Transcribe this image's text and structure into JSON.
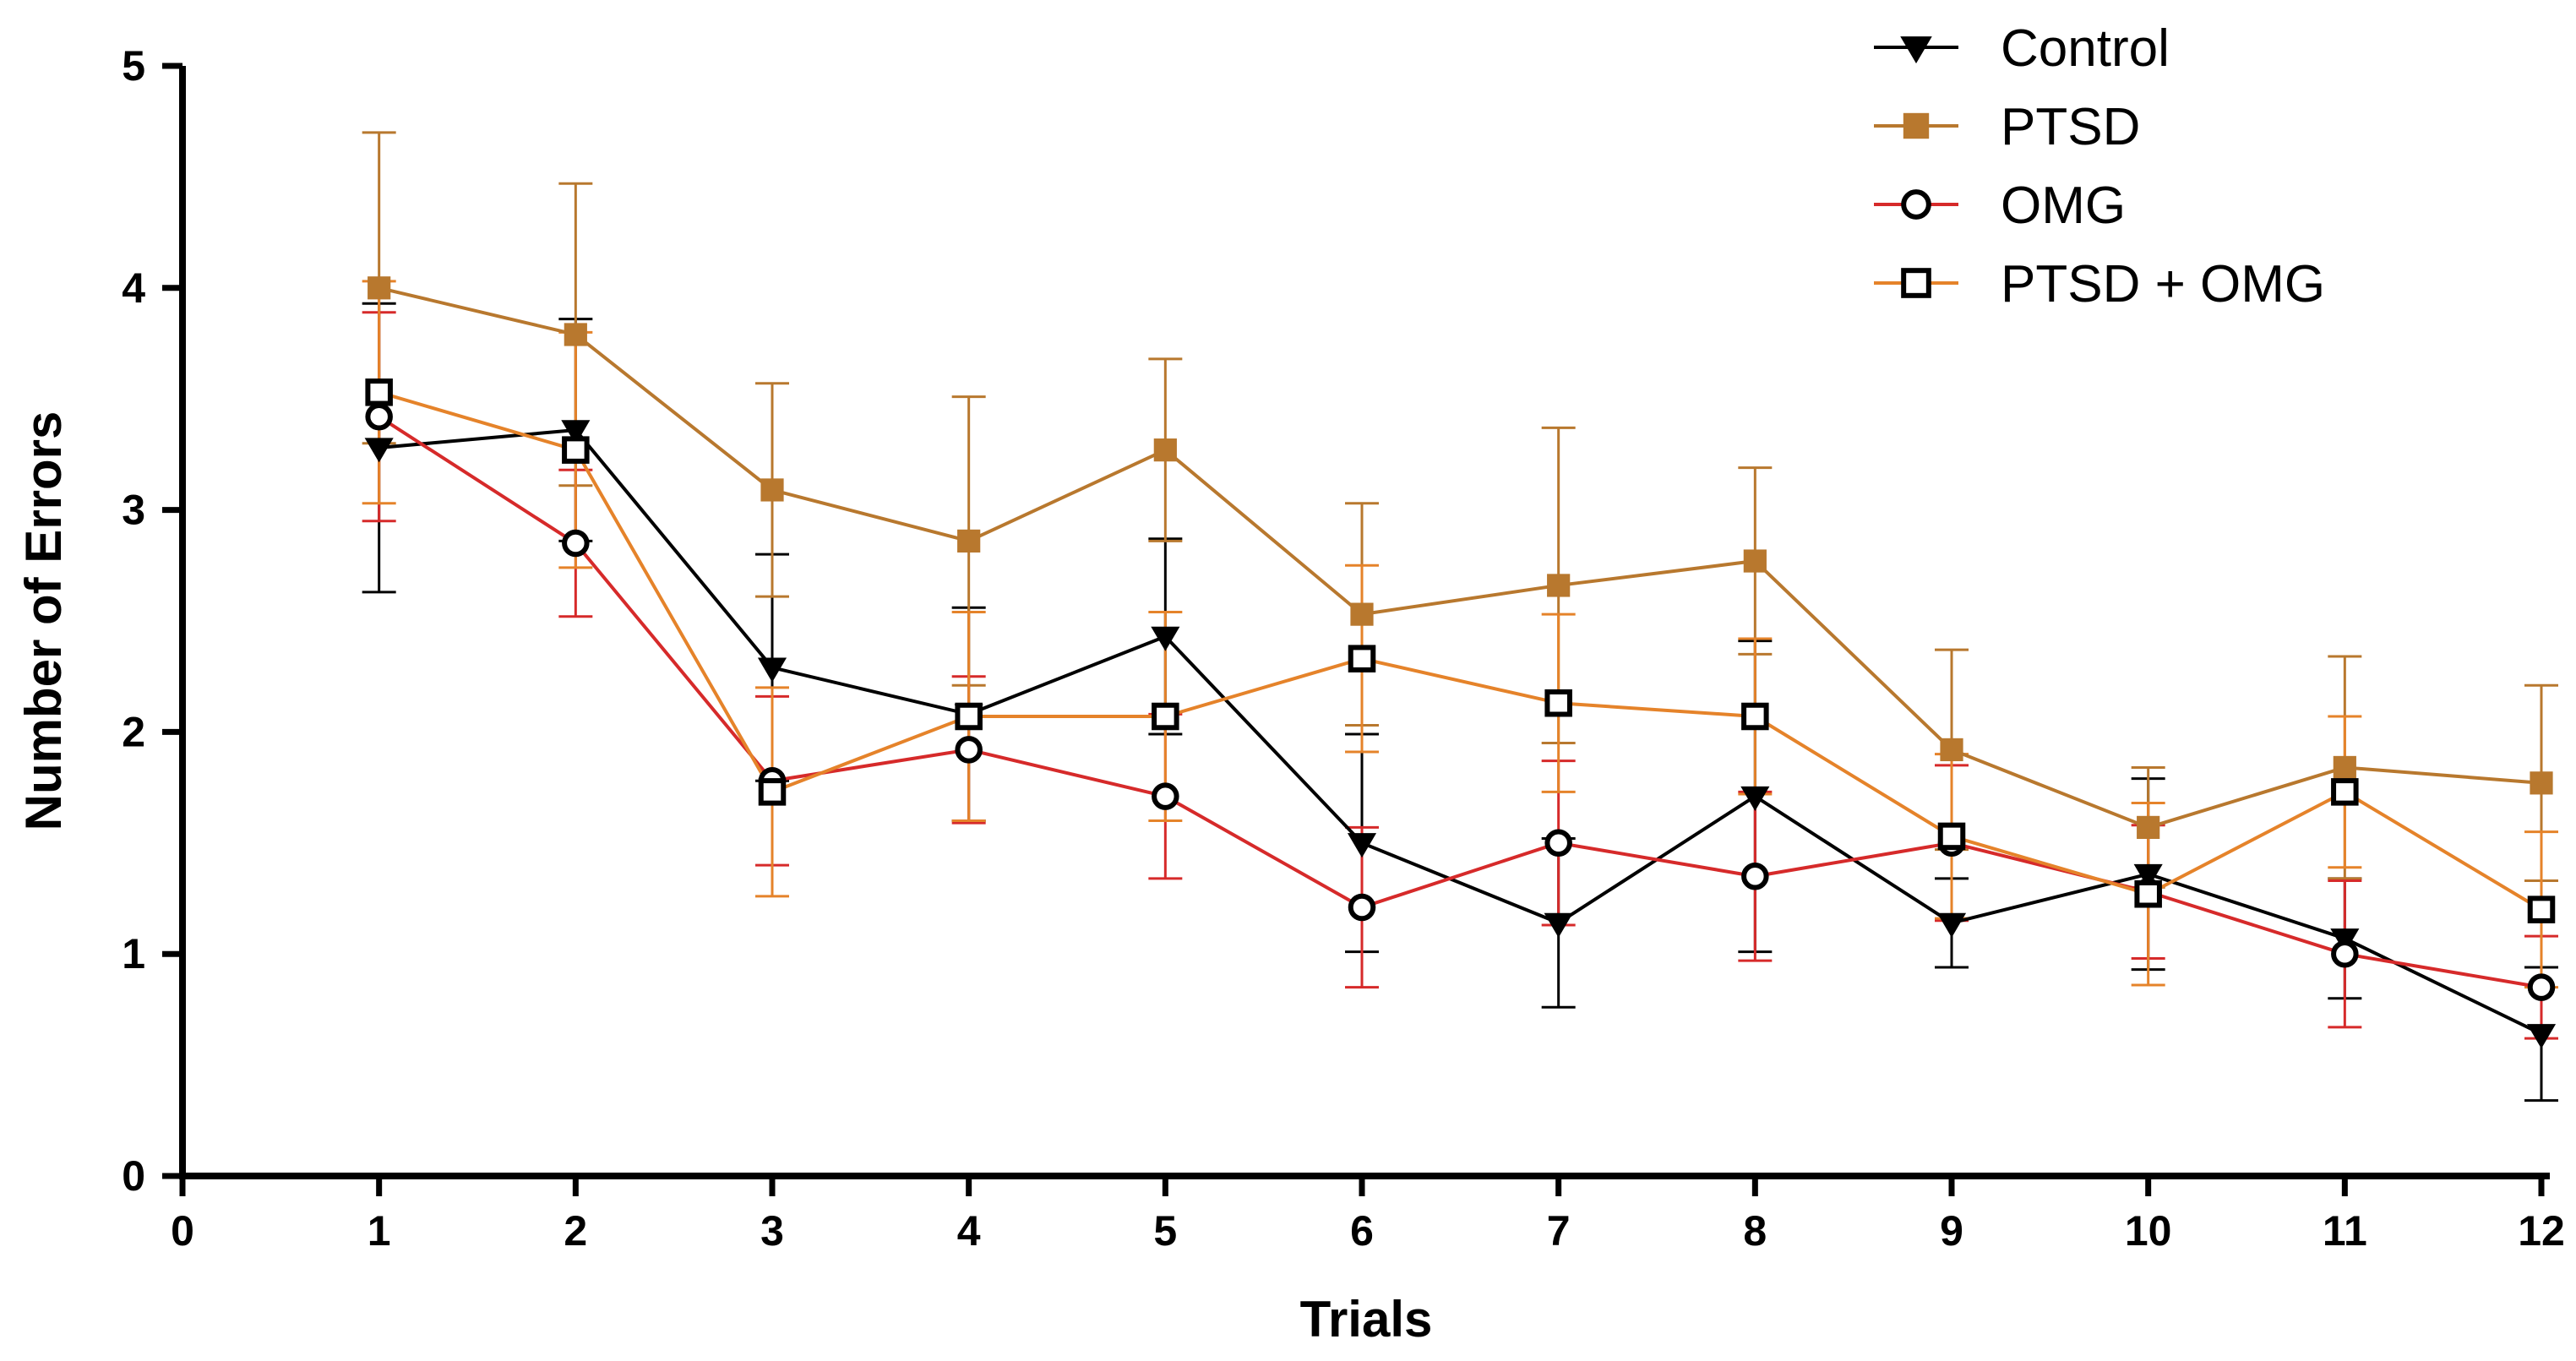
{
  "chart_data": {
    "type": "line",
    "title": "",
    "xlabel": "Trials",
    "ylabel": "Number of Errors",
    "xlim": [
      0,
      12
    ],
    "ylim": [
      0,
      5
    ],
    "x_ticks": [
      "0",
      "1",
      "2",
      "3",
      "4",
      "5",
      "6",
      "7",
      "8",
      "9",
      "10",
      "11",
      "12"
    ],
    "y_ticks": [
      "0",
      "1",
      "2",
      "3",
      "4",
      "5"
    ],
    "x": [
      1,
      2,
      3,
      4,
      5,
      6,
      7,
      8,
      9,
      10,
      11,
      12
    ],
    "grid": false,
    "legend_position": "top-right",
    "series": [
      {
        "name": "Control",
        "color": "#000000",
        "marker": "triangle-down",
        "values": [
          3.28,
          3.36,
          2.29,
          2.08,
          2.43,
          1.5,
          1.14,
          1.71,
          1.14,
          1.36,
          1.07,
          0.64
        ],
        "errors": [
          0.65,
          0.5,
          0.51,
          0.48,
          0.44,
          0.49,
          0.38,
          0.7,
          0.2,
          0.43,
          0.27,
          0.3
        ]
      },
      {
        "name": "PTSD",
        "color": "#B8782E",
        "marker": "square-filled",
        "values": [
          4.0,
          3.79,
          3.09,
          2.86,
          3.27,
          2.53,
          2.66,
          2.77,
          1.92,
          1.57,
          1.84,
          1.77
        ],
        "errors": [
          0.7,
          0.68,
          0.48,
          0.65,
          0.41,
          0.5,
          0.71,
          0.42,
          0.45,
          0.27,
          0.5,
          0.44
        ]
      },
      {
        "name": "OMG",
        "color": "#D62A2A",
        "marker": "circle-open",
        "values": [
          3.42,
          2.85,
          1.78,
          1.92,
          1.71,
          1.21,
          1.5,
          1.35,
          1.5,
          1.28,
          1.0,
          0.85
        ],
        "errors": [
          0.47,
          0.33,
          0.38,
          0.33,
          0.37,
          0.36,
          0.37,
          0.38,
          0.35,
          0.3,
          0.33,
          0.23
        ]
      },
      {
        "name": "PTSD + OMG",
        "color": "#E5832A",
        "marker": "square-open",
        "values": [
          3.53,
          3.27,
          1.73,
          2.07,
          2.07,
          2.33,
          2.13,
          2.07,
          1.53,
          1.27,
          1.73,
          1.2
        ],
        "errors": [
          0.5,
          0.53,
          0.47,
          0.47,
          0.47,
          0.42,
          0.4,
          0.35,
          0.37,
          0.41,
          0.34,
          0.35
        ]
      }
    ]
  }
}
